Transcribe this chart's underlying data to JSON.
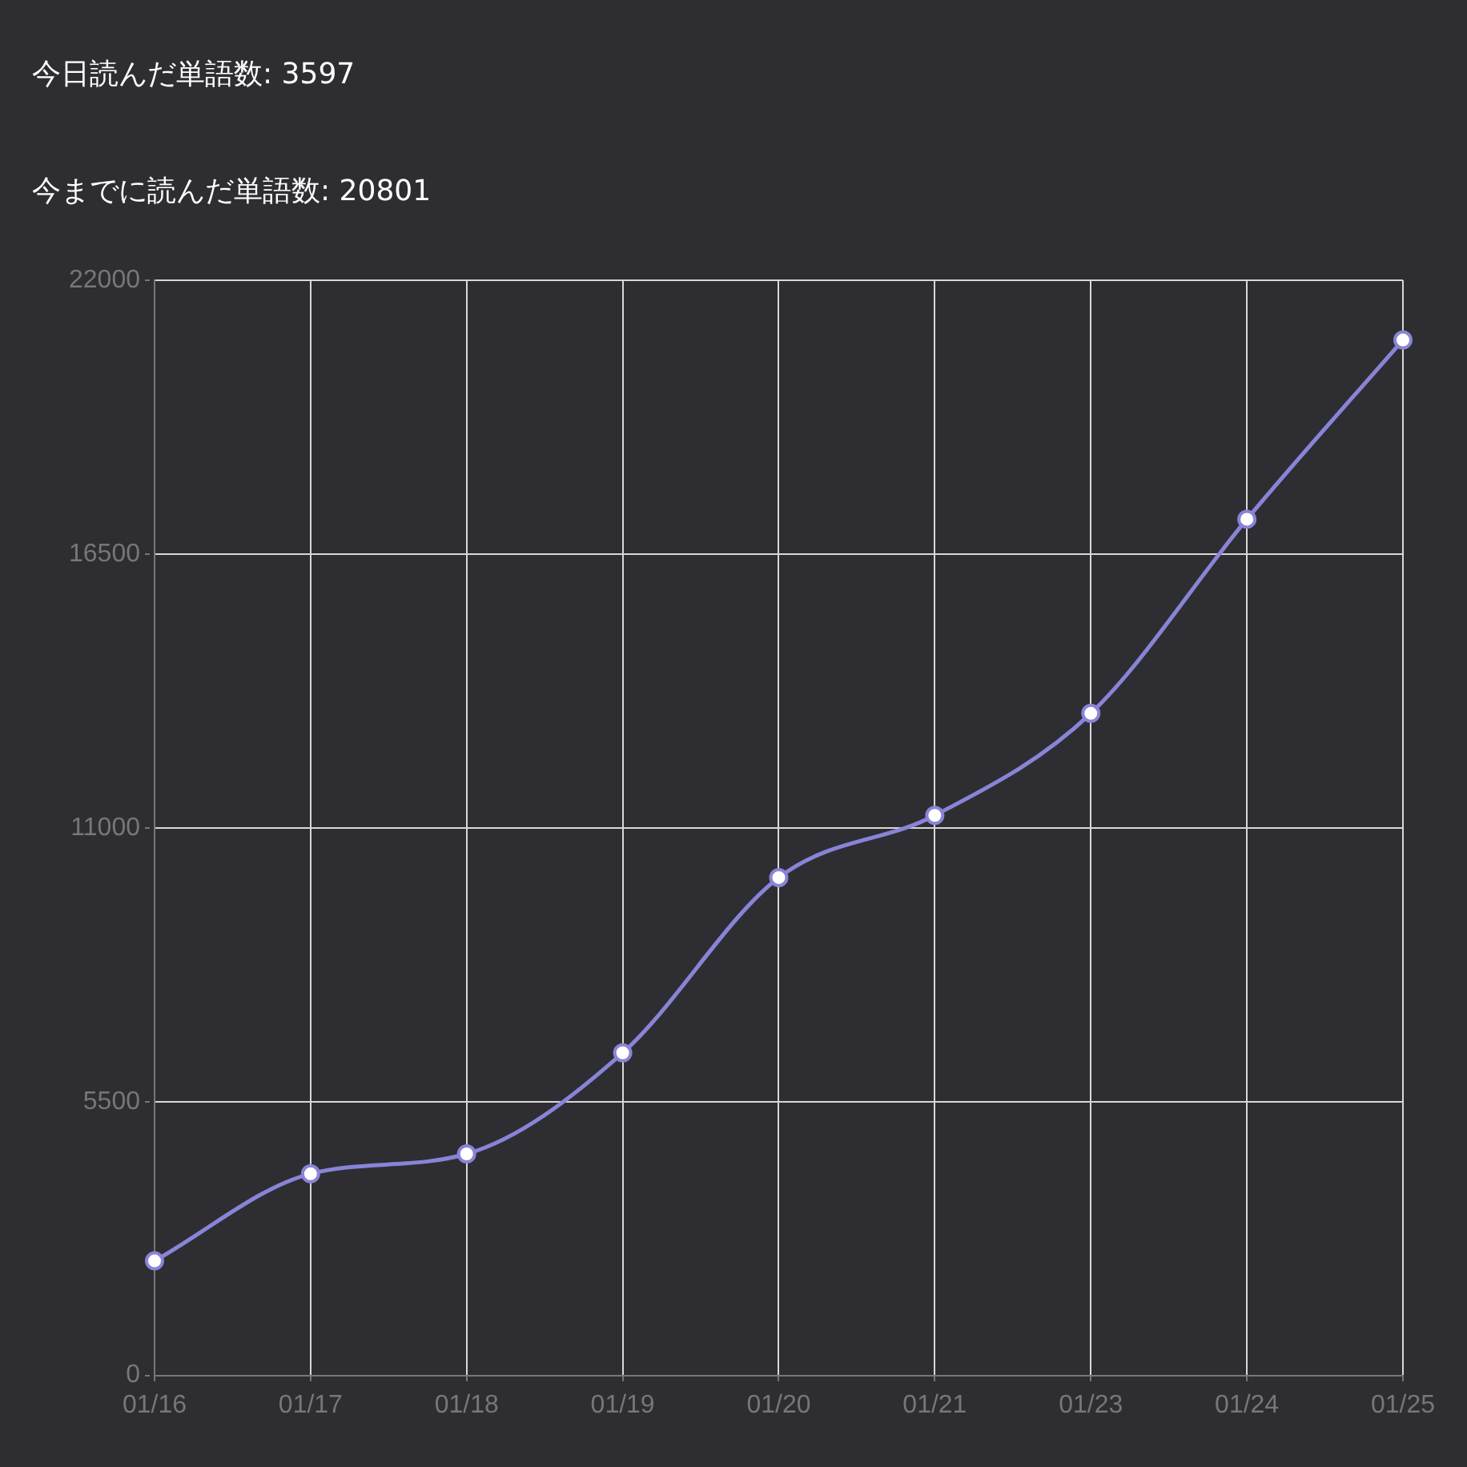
{
  "chart_data": {
    "type": "line",
    "title": "今日読んだ単語数: 3597",
    "subtitle": "今までに読んだ単語数: 20801",
    "categories": [
      "01/16",
      "01/17",
      "01/18",
      "01/19",
      "01/20",
      "01/21",
      "01/23",
      "01/24",
      "01/25"
    ],
    "series": [
      {
        "color": "#8884d8",
        "values": [
          2300,
          4050,
          4450,
          6480,
          10000,
          11250,
          13300,
          17200,
          20801
        ]
      }
    ],
    "ylim": [
      0,
      22000
    ],
    "yticks": [
      0,
      5500,
      11000,
      16500,
      22000
    ],
    "grid": true,
    "legend": false,
    "marker": "circle",
    "line_style": "solid"
  }
}
